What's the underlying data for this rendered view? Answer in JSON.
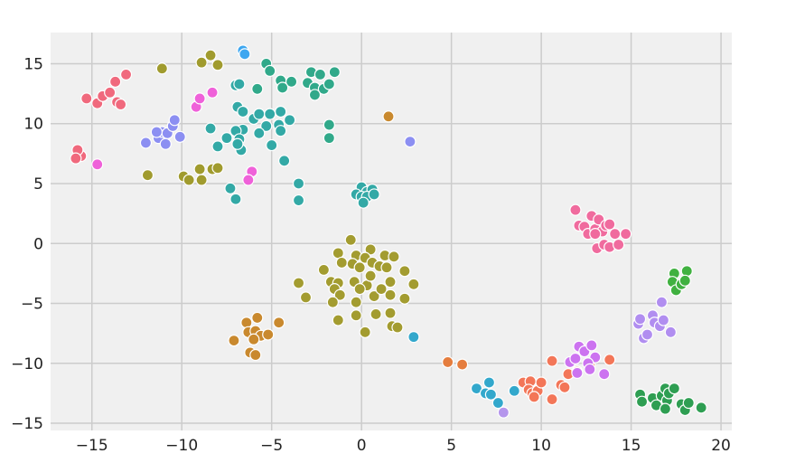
{
  "chart_data": {
    "type": "scatter",
    "title": "",
    "xlabel": "",
    "ylabel": "",
    "xlim": [
      -17.3,
      20.6
    ],
    "ylim": [
      -15.6,
      17.6
    ],
    "xticks": [
      -15,
      -10,
      -5,
      0,
      5,
      10,
      15,
      20
    ],
    "yticks": [
      -15,
      -10,
      -5,
      0,
      5,
      10,
      15
    ],
    "xtick_labels": [
      "−15",
      "−10",
      "−5",
      "0",
      "5",
      "10",
      "15",
      "20"
    ],
    "ytick_labels": [
      "−15",
      "−10",
      "−5",
      "0",
      "5",
      "10",
      "15"
    ],
    "grid": true,
    "legend": "none",
    "background": "#f0f0f0",
    "series": [
      {
        "color": "#f0697d",
        "points": [
          [
            -15.3,
            12.1
          ],
          [
            -14.7,
            11.7
          ],
          [
            -14.4,
            12.3
          ],
          [
            -14.0,
            12.6
          ],
          [
            -13.7,
            13.5
          ],
          [
            -13.6,
            11.8
          ],
          [
            -13.4,
            11.6
          ],
          [
            -13.1,
            14.1
          ],
          [
            -15.6,
            7.3
          ],
          [
            -15.8,
            7.8
          ],
          [
            -15.9,
            7.1
          ]
        ]
      },
      {
        "color": "#3ea7f0",
        "points": [
          [
            -6.6,
            16.1
          ],
          [
            -6.5,
            15.8
          ]
        ]
      },
      {
        "color": "#31a98a",
        "points": [
          [
            -5.3,
            15.0
          ],
          [
            -5.1,
            14.4
          ],
          [
            -2.8,
            14.3
          ],
          [
            -2.3,
            14.1
          ],
          [
            -1.5,
            14.3
          ],
          [
            -4.5,
            13.6
          ],
          [
            -3.9,
            13.5
          ],
          [
            -3.0,
            13.4
          ],
          [
            -2.6,
            13.0
          ],
          [
            -2.1,
            12.9
          ],
          [
            -1.8,
            13.3
          ],
          [
            -4.4,
            13.0
          ],
          [
            -5.8,
            12.9
          ],
          [
            -2.6,
            12.4
          ],
          [
            -1.8,
            9.9
          ],
          [
            -1.8,
            8.8
          ]
        ]
      },
      {
        "color": "#33a9a6",
        "points": [
          [
            -7.0,
            13.2
          ],
          [
            -6.8,
            13.3
          ],
          [
            -6.9,
            11.4
          ],
          [
            -6.6,
            11.0
          ],
          [
            -6.0,
            10.4
          ],
          [
            -5.7,
            10.8
          ],
          [
            -5.1,
            10.8
          ],
          [
            -4.5,
            11.0
          ],
          [
            -4.0,
            10.3
          ],
          [
            -5.3,
            9.8
          ],
          [
            -4.6,
            9.9
          ],
          [
            -6.6,
            9.5
          ],
          [
            -7.0,
            9.4
          ],
          [
            -5.7,
            9.2
          ],
          [
            -5.0,
            8.2
          ],
          [
            -4.5,
            9.4
          ],
          [
            -7.5,
            8.8
          ],
          [
            -6.8,
            8.7
          ],
          [
            -6.7,
            7.8
          ],
          [
            -8.4,
            9.6
          ],
          [
            -8.0,
            8.1
          ],
          [
            -6.9,
            8.3
          ],
          [
            -4.3,
            6.9
          ],
          [
            -7.3,
            4.6
          ],
          [
            -7.0,
            3.7
          ],
          [
            -3.5,
            5.0
          ],
          [
            -3.5,
            3.6
          ],
          [
            0.0,
            4.7
          ],
          [
            0.3,
            4.3
          ],
          [
            0.6,
            4.5
          ],
          [
            -0.3,
            4.1
          ],
          [
            0.0,
            3.9
          ],
          [
            0.3,
            3.9
          ],
          [
            0.7,
            4.1
          ],
          [
            0.1,
            3.4
          ]
        ]
      },
      {
        "color": "#a09b2e",
        "points": [
          [
            -11.1,
            14.6
          ],
          [
            -8.9,
            15.1
          ],
          [
            -8.4,
            15.7
          ],
          [
            -8.0,
            14.9
          ],
          [
            -11.9,
            5.7
          ],
          [
            -9.9,
            5.6
          ],
          [
            -9.6,
            5.3
          ],
          [
            -9.0,
            6.2
          ],
          [
            -8.9,
            5.3
          ],
          [
            -8.3,
            6.2
          ],
          [
            -8.0,
            6.3
          ]
        ]
      },
      {
        "color": "#a39c30",
        "points": [
          [
            -0.6,
            0.3
          ],
          [
            0.5,
            -0.5
          ],
          [
            -1.3,
            -0.8
          ],
          [
            -0.3,
            -1.0
          ],
          [
            0.2,
            -1.2
          ],
          [
            1.3,
            -1.0
          ],
          [
            1.8,
            -1.1
          ],
          [
            -1.1,
            -1.6
          ],
          [
            -0.5,
            -1.7
          ],
          [
            -0.1,
            -2.0
          ],
          [
            0.6,
            -1.6
          ],
          [
            1.0,
            -1.9
          ],
          [
            1.4,
            -2.0
          ],
          [
            2.4,
            -2.3
          ],
          [
            -2.1,
            -2.2
          ],
          [
            -1.7,
            -3.2
          ],
          [
            -1.3,
            -3.3
          ],
          [
            -0.4,
            -3.2
          ],
          [
            0.3,
            -3.5
          ],
          [
            0.5,
            -2.7
          ],
          [
            1.6,
            -3.2
          ],
          [
            2.9,
            -3.4
          ],
          [
            -3.5,
            -3.3
          ],
          [
            -1.5,
            -3.8
          ],
          [
            -1.2,
            -4.3
          ],
          [
            -0.1,
            -3.8
          ],
          [
            0.7,
            -4.4
          ],
          [
            1.1,
            -3.8
          ],
          [
            1.6,
            -4.3
          ],
          [
            2.4,
            -4.6
          ],
          [
            -3.1,
            -4.5
          ],
          [
            -1.6,
            -4.9
          ],
          [
            -0.3,
            -4.9
          ],
          [
            0.8,
            -5.9
          ],
          [
            1.6,
            -5.8
          ],
          [
            -0.3,
            -6.0
          ],
          [
            -1.3,
            -6.4
          ],
          [
            1.7,
            -6.9
          ],
          [
            2.0,
            -7.0
          ],
          [
            0.2,
            -7.4
          ]
        ]
      },
      {
        "color": "#ef61d9",
        "points": [
          [
            -9.2,
            11.4
          ],
          [
            -9.0,
            12.1
          ],
          [
            -8.3,
            12.6
          ],
          [
            -6.1,
            6.0
          ],
          [
            -6.3,
            5.3
          ],
          [
            -14.7,
            6.6
          ]
        ]
      },
      {
        "color": "#8c8ff2",
        "points": [
          [
            -12.0,
            8.4
          ],
          [
            -11.3,
            8.8
          ],
          [
            -11.1,
            9.3
          ],
          [
            -10.8,
            9.2
          ],
          [
            -10.5,
            9.8
          ],
          [
            -10.4,
            10.3
          ],
          [
            -10.1,
            8.9
          ],
          [
            -11.4,
            9.3
          ],
          [
            -10.9,
            8.3
          ],
          [
            2.7,
            8.5
          ]
        ]
      },
      {
        "color": "#c9892e",
        "points": [
          [
            1.5,
            10.6
          ],
          [
            -6.4,
            -6.6
          ],
          [
            -6.3,
            -7.4
          ],
          [
            -5.8,
            -6.2
          ],
          [
            -5.9,
            -7.3
          ],
          [
            -5.6,
            -7.7
          ],
          [
            -5.2,
            -7.6
          ],
          [
            -6.0,
            -8.0
          ],
          [
            -7.1,
            -8.1
          ],
          [
            -6.2,
            -9.1
          ],
          [
            -5.9,
            -9.3
          ],
          [
            -4.6,
            -6.6
          ]
        ]
      },
      {
        "color": "#e57d3e",
        "points": [
          [
            4.8,
            -9.9
          ],
          [
            5.6,
            -10.1
          ]
        ]
      },
      {
        "color": "#33a8cc",
        "points": [
          [
            2.9,
            -7.8
          ],
          [
            6.4,
            -12.1
          ],
          [
            6.9,
            -12.5
          ],
          [
            7.1,
            -11.6
          ],
          [
            7.2,
            -12.6
          ],
          [
            7.6,
            -13.3
          ],
          [
            8.5,
            -12.3
          ]
        ]
      },
      {
        "color": "#b596ec",
        "points": [
          [
            7.9,
            -14.1
          ]
        ]
      },
      {
        "color": "#f37658",
        "points": [
          [
            9.0,
            -11.6
          ],
          [
            9.4,
            -11.5
          ],
          [
            9.3,
            -12.2
          ],
          [
            9.5,
            -12.5
          ],
          [
            9.8,
            -12.3
          ],
          [
            10.0,
            -11.6
          ],
          [
            9.6,
            -12.8
          ],
          [
            10.6,
            -9.8
          ],
          [
            11.1,
            -11.8
          ],
          [
            11.3,
            -12.0
          ],
          [
            11.5,
            -10.9
          ],
          [
            12.0,
            -10.7
          ],
          [
            12.7,
            -10.2
          ],
          [
            13.8,
            -9.7
          ],
          [
            10.6,
            -13.0
          ]
        ]
      },
      {
        "color": "#cc73f0",
        "points": [
          [
            11.6,
            -9.9
          ],
          [
            11.9,
            -9.6
          ],
          [
            12.1,
            -8.6
          ],
          [
            12.4,
            -9.0
          ],
          [
            12.8,
            -8.5
          ],
          [
            13.0,
            -9.5
          ],
          [
            12.6,
            -10.0
          ],
          [
            12.7,
            -10.5
          ],
          [
            12.0,
            -10.8
          ],
          [
            13.5,
            -10.9
          ]
        ]
      },
      {
        "color": "#b18ef0",
        "points": [
          [
            15.4,
            -6.7
          ],
          [
            15.5,
            -6.3
          ],
          [
            15.7,
            -7.9
          ],
          [
            15.9,
            -7.6
          ],
          [
            16.2,
            -6.0
          ],
          [
            16.3,
            -6.6
          ],
          [
            16.6,
            -6.9
          ],
          [
            16.7,
            -4.9
          ],
          [
            16.8,
            -6.4
          ],
          [
            17.2,
            -7.4
          ]
        ]
      },
      {
        "color": "#40b140",
        "points": [
          [
            17.4,
            -2.5
          ],
          [
            17.3,
            -3.2
          ],
          [
            17.5,
            -3.9
          ],
          [
            17.8,
            -3.4
          ],
          [
            18.1,
            -2.3
          ],
          [
            18.0,
            -3.1
          ]
        ]
      },
      {
        "color": "#2e9e52",
        "points": [
          [
            15.5,
            -12.6
          ],
          [
            15.6,
            -13.2
          ],
          [
            16.2,
            -12.9
          ],
          [
            16.4,
            -13.5
          ],
          [
            16.7,
            -12.7
          ],
          [
            16.9,
            -12.1
          ],
          [
            17.0,
            -13.1
          ],
          [
            17.1,
            -12.5
          ],
          [
            17.4,
            -12.1
          ],
          [
            17.8,
            -13.4
          ],
          [
            18.0,
            -13.9
          ],
          [
            18.2,
            -13.3
          ],
          [
            18.9,
            -13.7
          ],
          [
            16.9,
            -13.8
          ]
        ]
      },
      {
        "color": "#f06b9e",
        "points": [
          [
            11.9,
            2.8
          ],
          [
            12.1,
            1.5
          ],
          [
            12.4,
            1.4
          ],
          [
            12.6,
            0.8
          ],
          [
            12.8,
            2.3
          ],
          [
            13.0,
            1.2
          ],
          [
            13.2,
            2.0
          ],
          [
            13.4,
            1.0
          ],
          [
            13.6,
            1.5
          ],
          [
            13.8,
            1.6
          ],
          [
            13.0,
            0.8
          ],
          [
            13.1,
            -0.4
          ],
          [
            13.5,
            -0.1
          ],
          [
            13.8,
            -0.3
          ],
          [
            14.1,
            0.8
          ],
          [
            14.3,
            -0.1
          ],
          [
            14.7,
            0.8
          ]
        ]
      }
    ]
  }
}
